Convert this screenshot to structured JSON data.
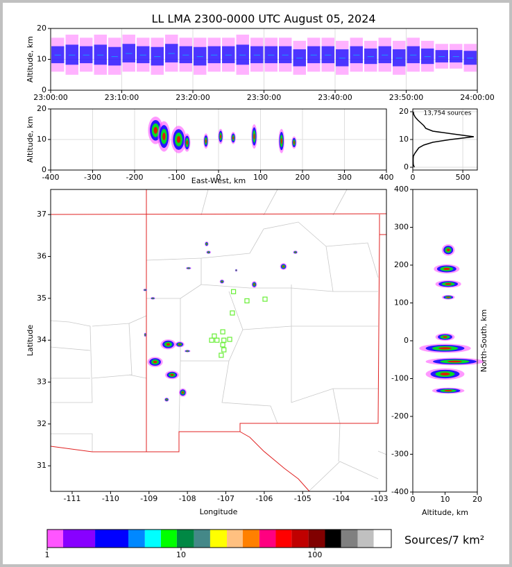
{
  "chart_data": [
    {
      "type": "time-height",
      "title": "LL LMA 2300-0000 UTC August 05, 2024",
      "ylabel": "Altitude, km",
      "xlim": [
        0,
        60
      ],
      "xticks": [
        {
          "value": 0,
          "label": "23:00:00"
        },
        {
          "value": 10,
          "label": "23:10:00"
        },
        {
          "value": 20,
          "label": "23:20:00"
        },
        {
          "value": 30,
          "label": "23:30:00"
        },
        {
          "value": 40,
          "label": "23:40:00"
        },
        {
          "value": 50,
          "label": "23:50:00"
        },
        {
          "value": 60,
          "label": "24:00:00"
        }
      ],
      "ylim": [
        0,
        20
      ],
      "yticks": [
        0,
        10,
        20
      ],
      "grid": true,
      "x": [
        1,
        3,
        5,
        7,
        9,
        11,
        13,
        15,
        17,
        19,
        21,
        23,
        25,
        27,
        29,
        31,
        33,
        35,
        37,
        39,
        41,
        43,
        45,
        47,
        49,
        51,
        53,
        55,
        57,
        59
      ],
      "low": [
        6,
        5,
        6,
        5,
        5,
        6,
        6,
        5,
        6,
        6,
        5,
        6,
        6,
        5,
        6,
        6,
        6,
        5,
        6,
        6,
        5,
        6,
        6,
        6,
        5,
        6,
        6,
        7,
        7,
        6
      ],
      "high": [
        17,
        18,
        17,
        18,
        17,
        18,
        17,
        17,
        18,
        17,
        17,
        17,
        17,
        18,
        17,
        17,
        17,
        16,
        17,
        17,
        16,
        17,
        16,
        17,
        16,
        17,
        16,
        15,
        15,
        15
      ],
      "colors": [
        "#ff55ff",
        "#0000ff",
        "#00c0ff"
      ]
    },
    {
      "type": "cells",
      "xlabel": "East-West, km",
      "ylabel": "Altitude, km",
      "xlim": [
        -400,
        400
      ],
      "xticks": [
        -400,
        -300,
        -200,
        -100,
        0,
        100,
        200,
        300,
        400
      ],
      "ylim": [
        0,
        20
      ],
      "yticks": [
        0,
        10,
        20
      ],
      "grid": true,
      "x": [
        -150,
        -130,
        -95,
        -75,
        -30,
        5,
        35,
        85,
        150,
        180
      ],
      "y": [
        13,
        11,
        10,
        9,
        9.5,
        11,
        10.5,
        11,
        9.5,
        9
      ],
      "rx": [
        18,
        15,
        18,
        8,
        6,
        6,
        6,
        7,
        7,
        6
      ],
      "ry": [
        4.5,
        5,
        4.5,
        3,
        2.5,
        2.5,
        2,
        4,
        4,
        2
      ],
      "colors": [
        "#ff55ff",
        "#0000ff",
        "#00ff00",
        "#ff0000"
      ]
    },
    {
      "type": "histogram-line",
      "annotation": "13,754 sources",
      "xlim": [
        0,
        645
      ],
      "xticks": [
        0,
        500
      ],
      "ylim": [
        -1,
        21
      ],
      "yticks": [
        0,
        10,
        20
      ],
      "grid": true,
      "x": [
        15,
        5,
        4,
        4,
        6,
        20,
        40,
        60,
        110,
        200,
        380,
        610,
        400,
        200,
        130,
        110,
        80,
        50,
        25,
        10,
        5
      ],
      "y": [
        0,
        1,
        2,
        3,
        4,
        5,
        6,
        7,
        8,
        9,
        10,
        11,
        12,
        13,
        14,
        15,
        16,
        17,
        18,
        19,
        20
      ],
      "color": "#000000"
    },
    {
      "type": "map",
      "xlabel": "Longitude",
      "ylabel": "Latitude",
      "xlim": [
        -111.56,
        -102.82
      ],
      "xticks": [
        -111,
        -110,
        -109,
        -108,
        -107,
        -106,
        -105,
        -104,
        -103
      ],
      "ylim": [
        30.39,
        37.6
      ],
      "yticks": [
        31,
        32,
        33,
        34,
        35,
        36,
        37
      ],
      "grid": false,
      "x": [
        -107.5,
        -107.45,
        -105.19,
        -105.5,
        -107.97,
        -106.26,
        -107.1,
        -106.73,
        -109.1,
        -108.9,
        -108.5,
        -108.2,
        -108.84,
        -108.4,
        -108.12,
        -108.54,
        -108.0,
        -109.1
      ],
      "y": [
        36.3,
        36.1,
        36.1,
        35.76,
        35.72,
        35.33,
        35.4,
        35.67,
        35.2,
        35.0,
        33.9,
        33.9,
        33.48,
        33.17,
        32.75,
        32.58,
        33.74,
        34.13
      ],
      "rx": [
        0.05,
        0.06,
        0.06,
        0.09,
        0.07,
        0.07,
        0.06,
        0.03,
        0.05,
        0.06,
        0.2,
        0.12,
        0.2,
        0.18,
        0.1,
        0.06,
        0.08,
        0.03
      ],
      "ry": [
        0.06,
        0.04,
        0.04,
        0.08,
        0.03,
        0.08,
        0.05,
        0.03,
        0.03,
        0.03,
        0.12,
        0.07,
        0.12,
        0.1,
        0.1,
        0.05,
        0.03,
        0.05
      ],
      "colors": [
        "#ff55ff",
        "#0000ff",
        "#00ff00",
        "#ff0000"
      ],
      "stations": {
        "color": "#66ee33",
        "x": [
          -106.8,
          -106.45,
          -105.98,
          -106.83,
          -107.08,
          -107.3,
          -107.37,
          -107.23,
          -107.05,
          -106.9,
          -107.08,
          -107.05,
          -107.12
        ],
        "y": [
          35.16,
          34.94,
          34.98,
          34.65,
          34.2,
          34.1,
          34.0,
          34.0,
          34.0,
          34.02,
          33.89,
          33.77,
          33.64
        ]
      }
    },
    {
      "type": "cells",
      "xlabel": "Altitude, km",
      "ylabel": "North-South, km",
      "xlim": [
        0,
        20
      ],
      "xticks": [
        0,
        10,
        20
      ],
      "ylim": [
        -400,
        400
      ],
      "yticks": [
        -400,
        -300,
        -200,
        -100,
        0,
        100,
        200,
        300,
        400
      ],
      "grid": false,
      "x": [
        11,
        10.5,
        11,
        11,
        10,
        10,
        13,
        10,
        11
      ],
      "y": [
        240,
        190,
        150,
        115,
        10,
        -20,
        -55,
        -88,
        -132
      ],
      "rx": [
        2,
        4,
        4,
        2,
        3,
        8,
        9,
        6,
        5
      ],
      "ry": [
        15,
        12,
        10,
        6,
        10,
        12,
        10,
        15,
        8
      ],
      "colors": [
        "#ff55ff",
        "#0000ff",
        "#00ff00",
        "#ff0000"
      ]
    },
    {
      "type": "colorbar",
      "label": "Sources/7 km²",
      "log": true,
      "xlim": [
        1,
        372
      ],
      "xticks": [
        1,
        10,
        100
      ],
      "bounds": [
        1,
        1.316,
        2.28,
        4.04,
        5.37,
        7.07,
        9.3,
        12.5,
        16.5,
        22,
        28.9,
        38.5,
        51,
        67,
        89.5,
        119,
        157,
        209,
        275,
        372
      ],
      "colors": [
        "#ff55ff",
        "#8800ff",
        "#0000ff",
        "#0088ff",
        "#00ffff",
        "#00ff00",
        "#008844",
        "#448888",
        "#ffff00",
        "#ffc080",
        "#ff8000",
        "#ff0080",
        "#ff0000",
        "#c00000",
        "#800000",
        "#000000",
        "#808080",
        "#c0c0c0",
        "#ffffff"
      ]
    }
  ]
}
